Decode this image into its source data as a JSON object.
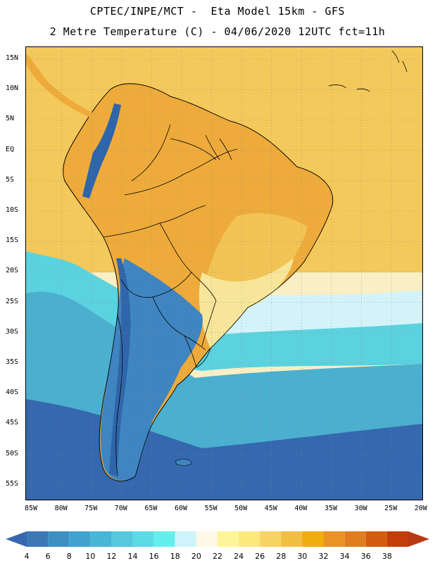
{
  "header": {
    "line1": "CPTEC/INPE/MCT -  Eta Model 15km - GFS",
    "line2": "2 Metre Temperature (C) - 04/06/2020 12UTC fct=11h"
  },
  "axes": {
    "lat_labels": [
      "15N",
      "10N",
      "5N",
      "EQ",
      "5S",
      "10S",
      "15S",
      "20S",
      "25S",
      "30S",
      "35S",
      "40S",
      "45S",
      "50S",
      "55S"
    ],
    "lon_labels": [
      "85W",
      "80W",
      "75W",
      "70W",
      "65W",
      "60W",
      "55W",
      "50W",
      "45W",
      "40W",
      "35W",
      "30W",
      "25W",
      "20W"
    ]
  },
  "colorbar": {
    "labels": [
      "4",
      "6",
      "8",
      "10",
      "12",
      "14",
      "16",
      "18",
      "20",
      "22",
      "24",
      "26",
      "28",
      "30",
      "32",
      "34",
      "36",
      "38"
    ],
    "colors": [
      "#3d78b5",
      "#3d8fc2",
      "#3fa3cd",
      "#48b6d6",
      "#54c8dd",
      "#5bdbe6",
      "#64efef",
      "#cdf4fb",
      "#fff8e6",
      "#fdf597",
      "#fde87e",
      "#f8d462",
      "#f1c043",
      "#f0ad0f",
      "#e99324",
      "#e07d1f",
      "#d55b10",
      "#c43d09"
    ],
    "low_color": "#3568ae",
    "high_color": "#b83a14"
  },
  "palette": {
    "ocean_cold": "#3568ae",
    "ocean_mid": "#4bb0cf",
    "ocean_cool": "#5bd2df",
    "ocean_light": "#d4f3f9",
    "ocean_warm": "#f9eec4",
    "tropic_sea": "#f4c95b",
    "land_hot": "#eeab3b",
    "land_warm": "#f2c455",
    "land_mild": "#f7e69a",
    "patagonia": "#3f85c1",
    "andes": "#2f65aa",
    "border": "#000000"
  }
}
